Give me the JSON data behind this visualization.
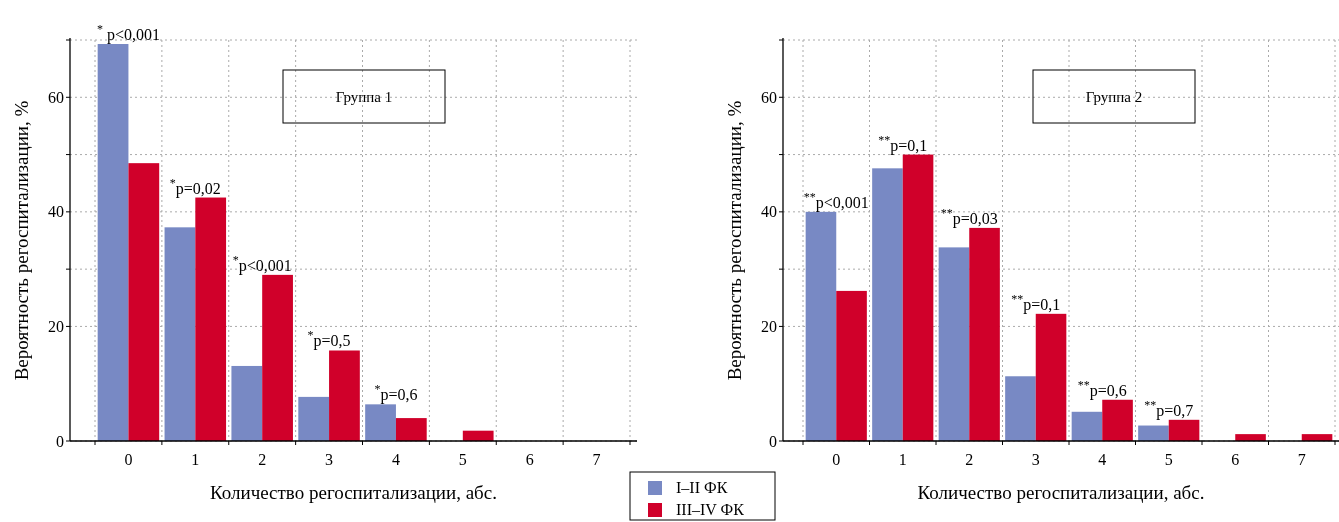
{
  "chart_data": [
    {
      "type": "bar",
      "title": "Группа 1",
      "xlabel": "Количество регоспитализации, абс.",
      "ylabel": "Вероятность регоспитализации, %",
      "categories": [
        "0",
        "1",
        "2",
        "3",
        "4",
        "5",
        "6",
        "7"
      ],
      "series": [
        {
          "name": "I–II ФК",
          "color": "#7889c4",
          "values": [
            69.3,
            37.3,
            13.1,
            7.7,
            6.4,
            0,
            0,
            0
          ]
        },
        {
          "name": "III–IV ФК",
          "color": "#d0002a",
          "values": [
            48.5,
            42.5,
            29,
            15.8,
            4.0,
            1.8,
            0,
            0
          ]
        }
      ],
      "ylim": [
        0,
        70
      ],
      "yticks": [
        0,
        20,
        {
          "value": 30,
          "label": null
        },
        40,
        {
          "value": 50,
          "label": null
        },
        60,
        {
          "value": 70,
          "label": null
        }
      ],
      "grid": true,
      "legend": "bottom right",
      "annotations": [
        {
          "text": "$^{*}$ p<0,001",
          "x": "0",
          "y": 69.3
        },
        {
          "text": "$^{*}$p=0,02",
          "x": "1",
          "y": 42.5
        },
        {
          "text": "$^{*}$p<0,001",
          "x": "2",
          "y": 29
        },
        {
          "text": "$^{*}$p=0,5",
          "x": "3",
          "y": 15.8
        },
        {
          "text": "$^{*}$p=0,6",
          "x": "4",
          "y": 6.4
        }
      ]
    },
    {
      "type": "bar",
      "title": "Группа 2",
      "xlabel": "Количество регоспитализации, абс.",
      "ylabel": "Вероятность регоспитализации, %",
      "categories": [
        "0",
        "1",
        "2",
        "3",
        "4",
        "5",
        "6",
        "7"
      ],
      "series": [
        {
          "color": "#7889c4",
          "values": [
            40,
            47.6,
            33.8,
            11.3,
            5.1,
            2.7,
            0,
            0
          ]
        },
        {
          "color": "#d0002a",
          "values": [
            26.2,
            50,
            37.2,
            22.2,
            7.2,
            3.7,
            1.2,
            1.2
          ]
        }
      ],
      "ylim": [
        0,
        70
      ],
      "yticks": [
        0,
        20,
        {
          "value": 30,
          "label": null
        },
        40,
        {
          "value": 50,
          "label": null
        },
        60,
        {
          "value": 70,
          "label": null
        }
      ],
      "grid": true,
      "annotations": [
        {
          "text": "$^{**}$p<0,001",
          "x": "0",
          "y": 40
        },
        {
          "text": "$^{**}$p=0,1",
          "x": "1",
          "y": 50
        },
        {
          "text": "$^{**}$p=0,03",
          "x": "2",
          "y": 37.2
        },
        {
          "text": "$^{**}$p=0,1",
          "x": "3",
          "y": 22.2
        },
        {
          "text": "$^{**}$p=0,6",
          "x": "4",
          "y": 7.2
        },
        {
          "text": "$^{**}$p=0,7",
          "x": "5",
          "y": 3.7
        }
      ]
    }
  ]
}
